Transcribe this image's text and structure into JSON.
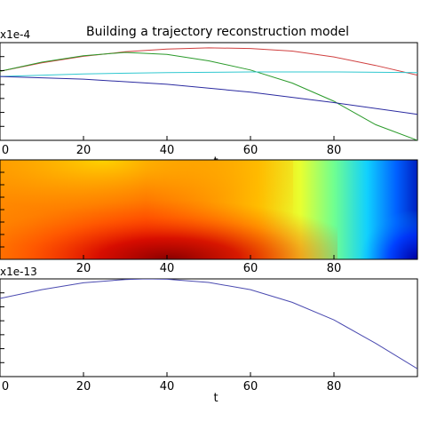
{
  "title": "Building a trajectory reconstruction model",
  "chart_data": [
    {
      "type": "line",
      "panel": "top",
      "offset_label": "x1e-4",
      "xlabel": "t",
      "xlim": [
        0,
        100
      ],
      "ylim": [
        -5,
        2.5
      ],
      "x_ticks": [
        0,
        20,
        40,
        60,
        80
      ],
      "series": [
        {
          "color": "#d04040",
          "x": [
            0,
            10,
            20,
            30,
            40,
            50,
            60,
            70,
            80,
            90,
            100
          ],
          "y": [
            0.3,
            0.95,
            1.45,
            1.8,
            2.0,
            2.1,
            2.05,
            1.85,
            1.4,
            0.75,
            0.0
          ]
        },
        {
          "color": "#2a9a2a",
          "x": [
            0,
            10,
            20,
            30,
            40,
            50,
            60,
            70,
            80,
            90,
            100
          ],
          "y": [
            0.3,
            1.0,
            1.5,
            1.75,
            1.6,
            1.1,
            0.4,
            -0.6,
            -2.0,
            -3.8,
            -5.0
          ]
        },
        {
          "color": "#30c8d0",
          "x": [
            0,
            20,
            40,
            60,
            80,
            100
          ],
          "y": [
            -0.1,
            0.1,
            0.2,
            0.25,
            0.25,
            0.2
          ]
        },
        {
          "color": "#2a2aa0",
          "x": [
            0,
            20,
            40,
            60,
            80,
            100
          ],
          "y": [
            -0.1,
            -0.3,
            -0.7,
            -1.3,
            -2.1,
            -3.0
          ]
        }
      ]
    },
    {
      "type": "heatmap",
      "panel": "middle",
      "colormap": "jet",
      "xlim": [
        0,
        100
      ],
      "x_ticks": [
        20,
        40,
        60,
        80
      ]
    },
    {
      "type": "line",
      "panel": "bottom",
      "offset_label": "x1e-13",
      "xlabel": "t",
      "xlim": [
        0,
        100
      ],
      "ylim": [
        -4,
        1
      ],
      "x_ticks": [
        0,
        20,
        40,
        60,
        80
      ],
      "series": [
        {
          "color": "#4a4ab0",
          "x": [
            0,
            10,
            20,
            30,
            35,
            40,
            50,
            60,
            70,
            80,
            90,
            100
          ],
          "y": [
            0.0,
            0.45,
            0.8,
            0.97,
            1.0,
            0.98,
            0.82,
            0.45,
            -0.2,
            -1.1,
            -2.3,
            -3.6
          ]
        }
      ]
    }
  ]
}
